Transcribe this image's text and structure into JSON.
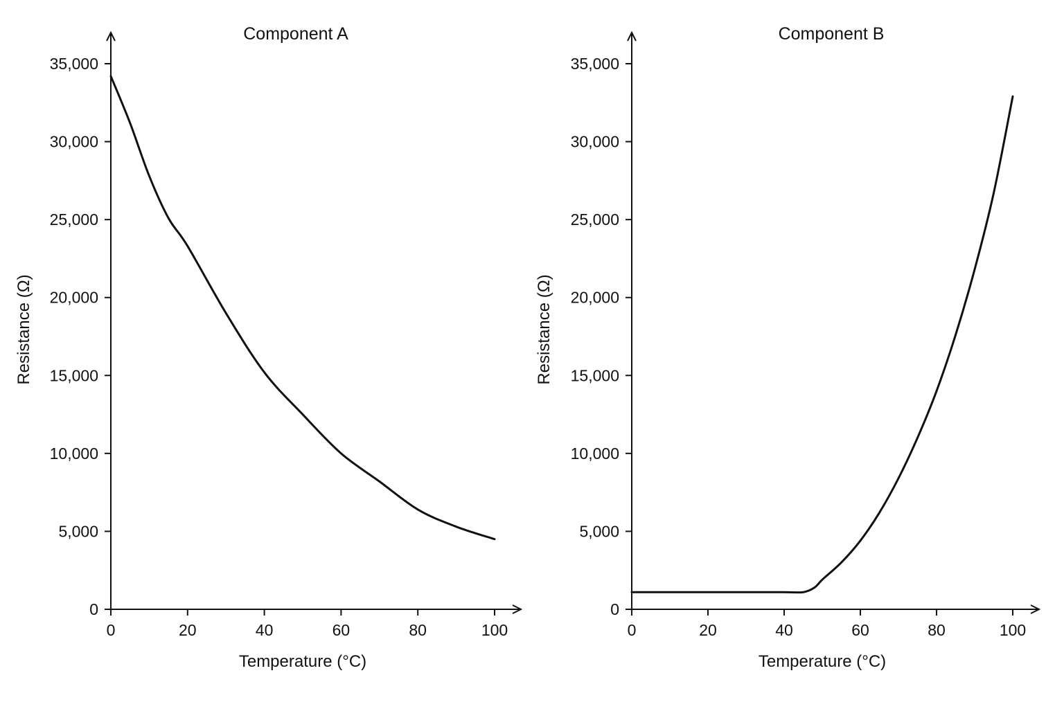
{
  "chart_data": [
    {
      "type": "line",
      "title": "Component A",
      "xlabel": "Temperature (°C)",
      "ylabel": "Resistance (Ω)",
      "xlim": [
        0,
        100
      ],
      "ylim": [
        0,
        35000
      ],
      "x_ticks": [
        0,
        20,
        40,
        60,
        80,
        100
      ],
      "x_tick_labels": [
        "0",
        "20",
        "40",
        "60",
        "80",
        "100"
      ],
      "y_ticks": [
        0,
        5000,
        10000,
        15000,
        20000,
        25000,
        30000,
        35000
      ],
      "y_tick_labels": [
        "0",
        "5,000",
        "10,000",
        "15,000",
        "20,000",
        "25,000",
        "30,000",
        "35,000"
      ],
      "grid": false,
      "color": "#111111",
      "series": [
        {
          "x": [
            0,
            5,
            10,
            15,
            20,
            30,
            40,
            50,
            60,
            70,
            80,
            90,
            100
          ],
          "y": [
            34200,
            31200,
            27800,
            25100,
            23300,
            19000,
            15200,
            12500,
            10000,
            8200,
            6400,
            5300,
            4500
          ]
        }
      ]
    },
    {
      "type": "line",
      "title": "Component B",
      "xlabel": "Temperature (°C)",
      "ylabel": "Resistance (Ω)",
      "xlim": [
        0,
        100
      ],
      "ylim": [
        0,
        35000
      ],
      "x_ticks": [
        0,
        20,
        40,
        60,
        80,
        100
      ],
      "x_tick_labels": [
        "0",
        "20",
        "40",
        "60",
        "80",
        "100"
      ],
      "y_ticks": [
        0,
        5000,
        10000,
        15000,
        20000,
        25000,
        30000,
        35000
      ],
      "y_tick_labels": [
        "0",
        "5,000",
        "10,000",
        "15,000",
        "20,000",
        "25,000",
        "30,000",
        "35,000"
      ],
      "grid": false,
      "color": "#111111",
      "series": [
        {
          "x": [
            0,
            10,
            20,
            30,
            40,
            45,
            48,
            50,
            55,
            60,
            65,
            70,
            75,
            80,
            85,
            90,
            95,
            100
          ],
          "y": [
            1100,
            1100,
            1100,
            1100,
            1100,
            1100,
            1400,
            1900,
            3000,
            4400,
            6200,
            8400,
            11000,
            14000,
            17600,
            21800,
            26700,
            32900
          ]
        }
      ]
    }
  ]
}
